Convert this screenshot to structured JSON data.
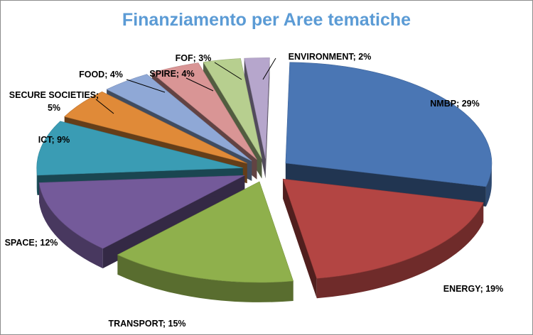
{
  "chart_data": {
    "type": "pie",
    "title": "Finanziamento per Aree tematiche",
    "categories": [
      "NMBP",
      "ENERGY",
      "TRANSPORT",
      "SPACE",
      "ICT",
      "SECURE SOCIETIES",
      "FOOD",
      "SPIRE",
      "FOF",
      "ENVIRONMENT"
    ],
    "values": [
      29,
      19,
      15,
      12,
      9,
      5,
      4,
      4,
      3,
      2
    ],
    "labels": [
      "NMBP; 29%",
      "ENERGY; 19%",
      "TRANSPORT; 15%",
      "SPACE; 12%",
      "ICT; 9%",
      "SECURE SOCIETIES;",
      "FOOD; 4%",
      "SPIRE; 4%",
      "FOF; 3%",
      "ENVIRONMENT; 2%"
    ],
    "label_line2": {
      "SECURE SOCIETIES": "5%"
    },
    "colors": [
      "#4a76b4",
      "#b34543",
      "#8fb04c",
      "#745a9a",
      "#3a9cb4",
      "#e08a38",
      "#8fa8d6",
      "#d99595",
      "#b7cf8f",
      "#b6a6cc"
    ],
    "style": "3d-exploded-pie"
  }
}
